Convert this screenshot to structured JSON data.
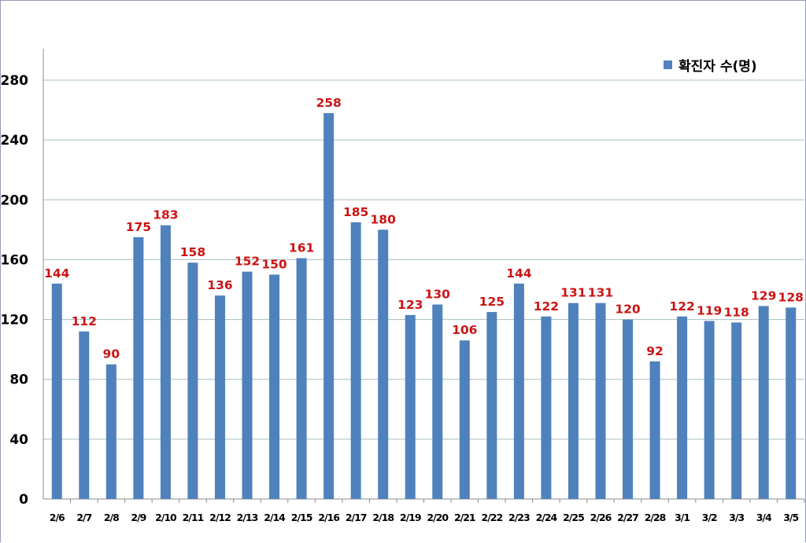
{
  "chart_data": {
    "type": "bar",
    "categories": [
      "2/6",
      "2/7",
      "2/8",
      "2/9",
      "2/10",
      "2/11",
      "2/12",
      "2/13",
      "2/14",
      "2/15",
      "2/16",
      "2/17",
      "2/18",
      "2/19",
      "2/20",
      "2/21",
      "2/22",
      "2/23",
      "2/24",
      "2/25",
      "2/26",
      "2/27",
      "2/28",
      "3/1",
      "3/2",
      "3/3",
      "3/4",
      "3/5"
    ],
    "series": [
      {
        "name": "확진자 수(명)",
        "values": [
          144,
          112,
          90,
          175,
          183,
          158,
          136,
          152,
          150,
          161,
          258,
          185,
          180,
          123,
          130,
          106,
          125,
          144,
          122,
          131,
          131,
          120,
          92,
          122,
          119,
          118,
          129,
          128
        ]
      }
    ],
    "yticks": [
      0,
      40,
      80,
      120,
      160,
      200,
      240,
      280
    ],
    "ylim": [
      0,
      300
    ],
    "grid": "horizontal",
    "legend": "top-right",
    "bar_color": "#4f81bd",
    "label_color": "#cc1414",
    "grid_color": "#a7bfbf"
  }
}
